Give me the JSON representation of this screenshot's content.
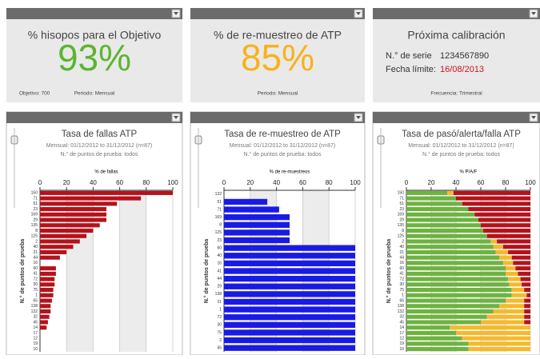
{
  "tiles": [
    {
      "title": "% hisopos para el Objetivo",
      "value": "93%",
      "color": "#5cb531",
      "footer": [
        "Objetivo: 700",
        "Periodo: Mensual"
      ]
    },
    {
      "title": "% de re-muestreo de ATP",
      "value": "85%",
      "color": "#f9b21b",
      "footer": [
        "Periodo: Mensual"
      ]
    },
    {
      "title": "Próxima calibración",
      "rows": [
        [
          "N.° de serie",
          "1234567890"
        ],
        [
          "Fecha límite:",
          "16/08/2013"
        ]
      ],
      "footer": [
        "Frecuencia: Trimestral"
      ]
    }
  ],
  "chart_data": [
    {
      "type": "bar",
      "orientation": "horizontal",
      "title": "Tasa de fallas ATP",
      "subtitle": [
        "Mensual: 01/12/2012 to 31/12/2012 (n=87)",
        "N.° de puntos de prueba: todos"
      ],
      "x_label": "% de fallas",
      "y_label": "N.° de puntos de prueba",
      "categories": [
        "150",
        "71",
        "51",
        "23",
        "169",
        "29",
        "135",
        "8",
        "125",
        "2",
        "40",
        "21",
        "44",
        "16",
        "60",
        "41",
        "72",
        "30",
        "75",
        "1",
        "65",
        "138",
        "132",
        "32",
        "45",
        "14",
        "17",
        "12",
        "19",
        "10"
      ],
      "series": [
        {
          "color": "#b5121b",
          "values": [
            100,
            76,
            58,
            50,
            50,
            50,
            45,
            40,
            35,
            30,
            25,
            20,
            15,
            0,
            12,
            12,
            11,
            11,
            10,
            10,
            9,
            8,
            8,
            7,
            6,
            5,
            0,
            0,
            0,
            0
          ]
        }
      ],
      "xlim": [
        0,
        100
      ],
      "xticks": [
        0,
        20,
        40,
        60,
        80,
        100
      ],
      "grid": true
    },
    {
      "type": "bar",
      "orientation": "horizontal",
      "title": "Tasa de re-muestreo de ATP",
      "subtitle": [
        "Mensual: 01/12/2012 to 31/12/2012 (n=87)",
        "N.° de puntos de prueba: todos"
      ],
      "x_label": "% de re-muestreos",
      "y_label": "N.° de puntos de prueba",
      "categories": [
        "132",
        "51",
        "71",
        "169",
        "8",
        "125",
        "23",
        "60",
        "40",
        "16",
        "41",
        "44",
        "29",
        "138",
        "21",
        "1",
        "72",
        "30",
        "75",
        "2",
        "65"
      ],
      "series": [
        {
          "color": "#1a1ae6",
          "values": [
            0,
            33,
            42,
            50,
            50,
            50,
            50,
            100,
            100,
            100,
            100,
            100,
            100,
            100,
            100,
            100,
            100,
            100,
            100,
            100,
            100
          ]
        }
      ],
      "xlim": [
        0,
        100
      ],
      "xticks": [
        0,
        20,
        40,
        60,
        80,
        100
      ],
      "grid": true
    },
    {
      "type": "bar",
      "orientation": "horizontal",
      "stacked": true,
      "title": "Tasa de pasó/alerta/falla ATP",
      "subtitle": [
        "Mensual: 01/12/2012 to 31/12/2012 (n=87)",
        "N.° de puntos de prueba: todos"
      ],
      "x_label": "% P/A/F",
      "y_label": "N.° de puntos de prueba",
      "categories": [
        "150",
        "71",
        "51",
        "23",
        "169",
        "29",
        "135",
        "8",
        "125",
        "2",
        "40",
        "21",
        "44",
        "16",
        "60",
        "41",
        "72",
        "30",
        "75",
        "1",
        "65",
        "138",
        "132",
        "32",
        "45",
        "14",
        "17",
        "12",
        "19",
        "10"
      ],
      "series": [
        {
          "color": "#6db33f",
          "values": [
            33,
            40,
            45,
            50,
            55,
            58,
            60,
            62,
            65,
            68,
            70,
            72,
            75,
            78,
            80,
            80,
            82,
            83,
            85,
            85,
            80,
            75,
            70,
            65,
            60,
            35,
            40,
            45,
            50,
            50
          ]
        },
        {
          "color": "#f7b92a",
          "values": [
            5,
            0,
            0,
            0,
            0,
            0,
            0,
            0,
            0,
            5,
            8,
            10,
            10,
            8,
            8,
            10,
            10,
            10,
            10,
            12,
            15,
            20,
            25,
            30,
            35,
            65,
            60,
            55,
            50,
            50
          ]
        },
        {
          "color": "#b5121b",
          "values": [
            62,
            60,
            55,
            50,
            45,
            42,
            40,
            38,
            35,
            27,
            22,
            18,
            15,
            14,
            12,
            10,
            8,
            7,
            5,
            3,
            5,
            5,
            5,
            5,
            5,
            0,
            0,
            0,
            0,
            0
          ]
        }
      ],
      "xlim": [
        0,
        100
      ],
      "xticks": [
        0,
        20,
        40,
        60,
        80,
        100
      ],
      "grid": true
    }
  ]
}
